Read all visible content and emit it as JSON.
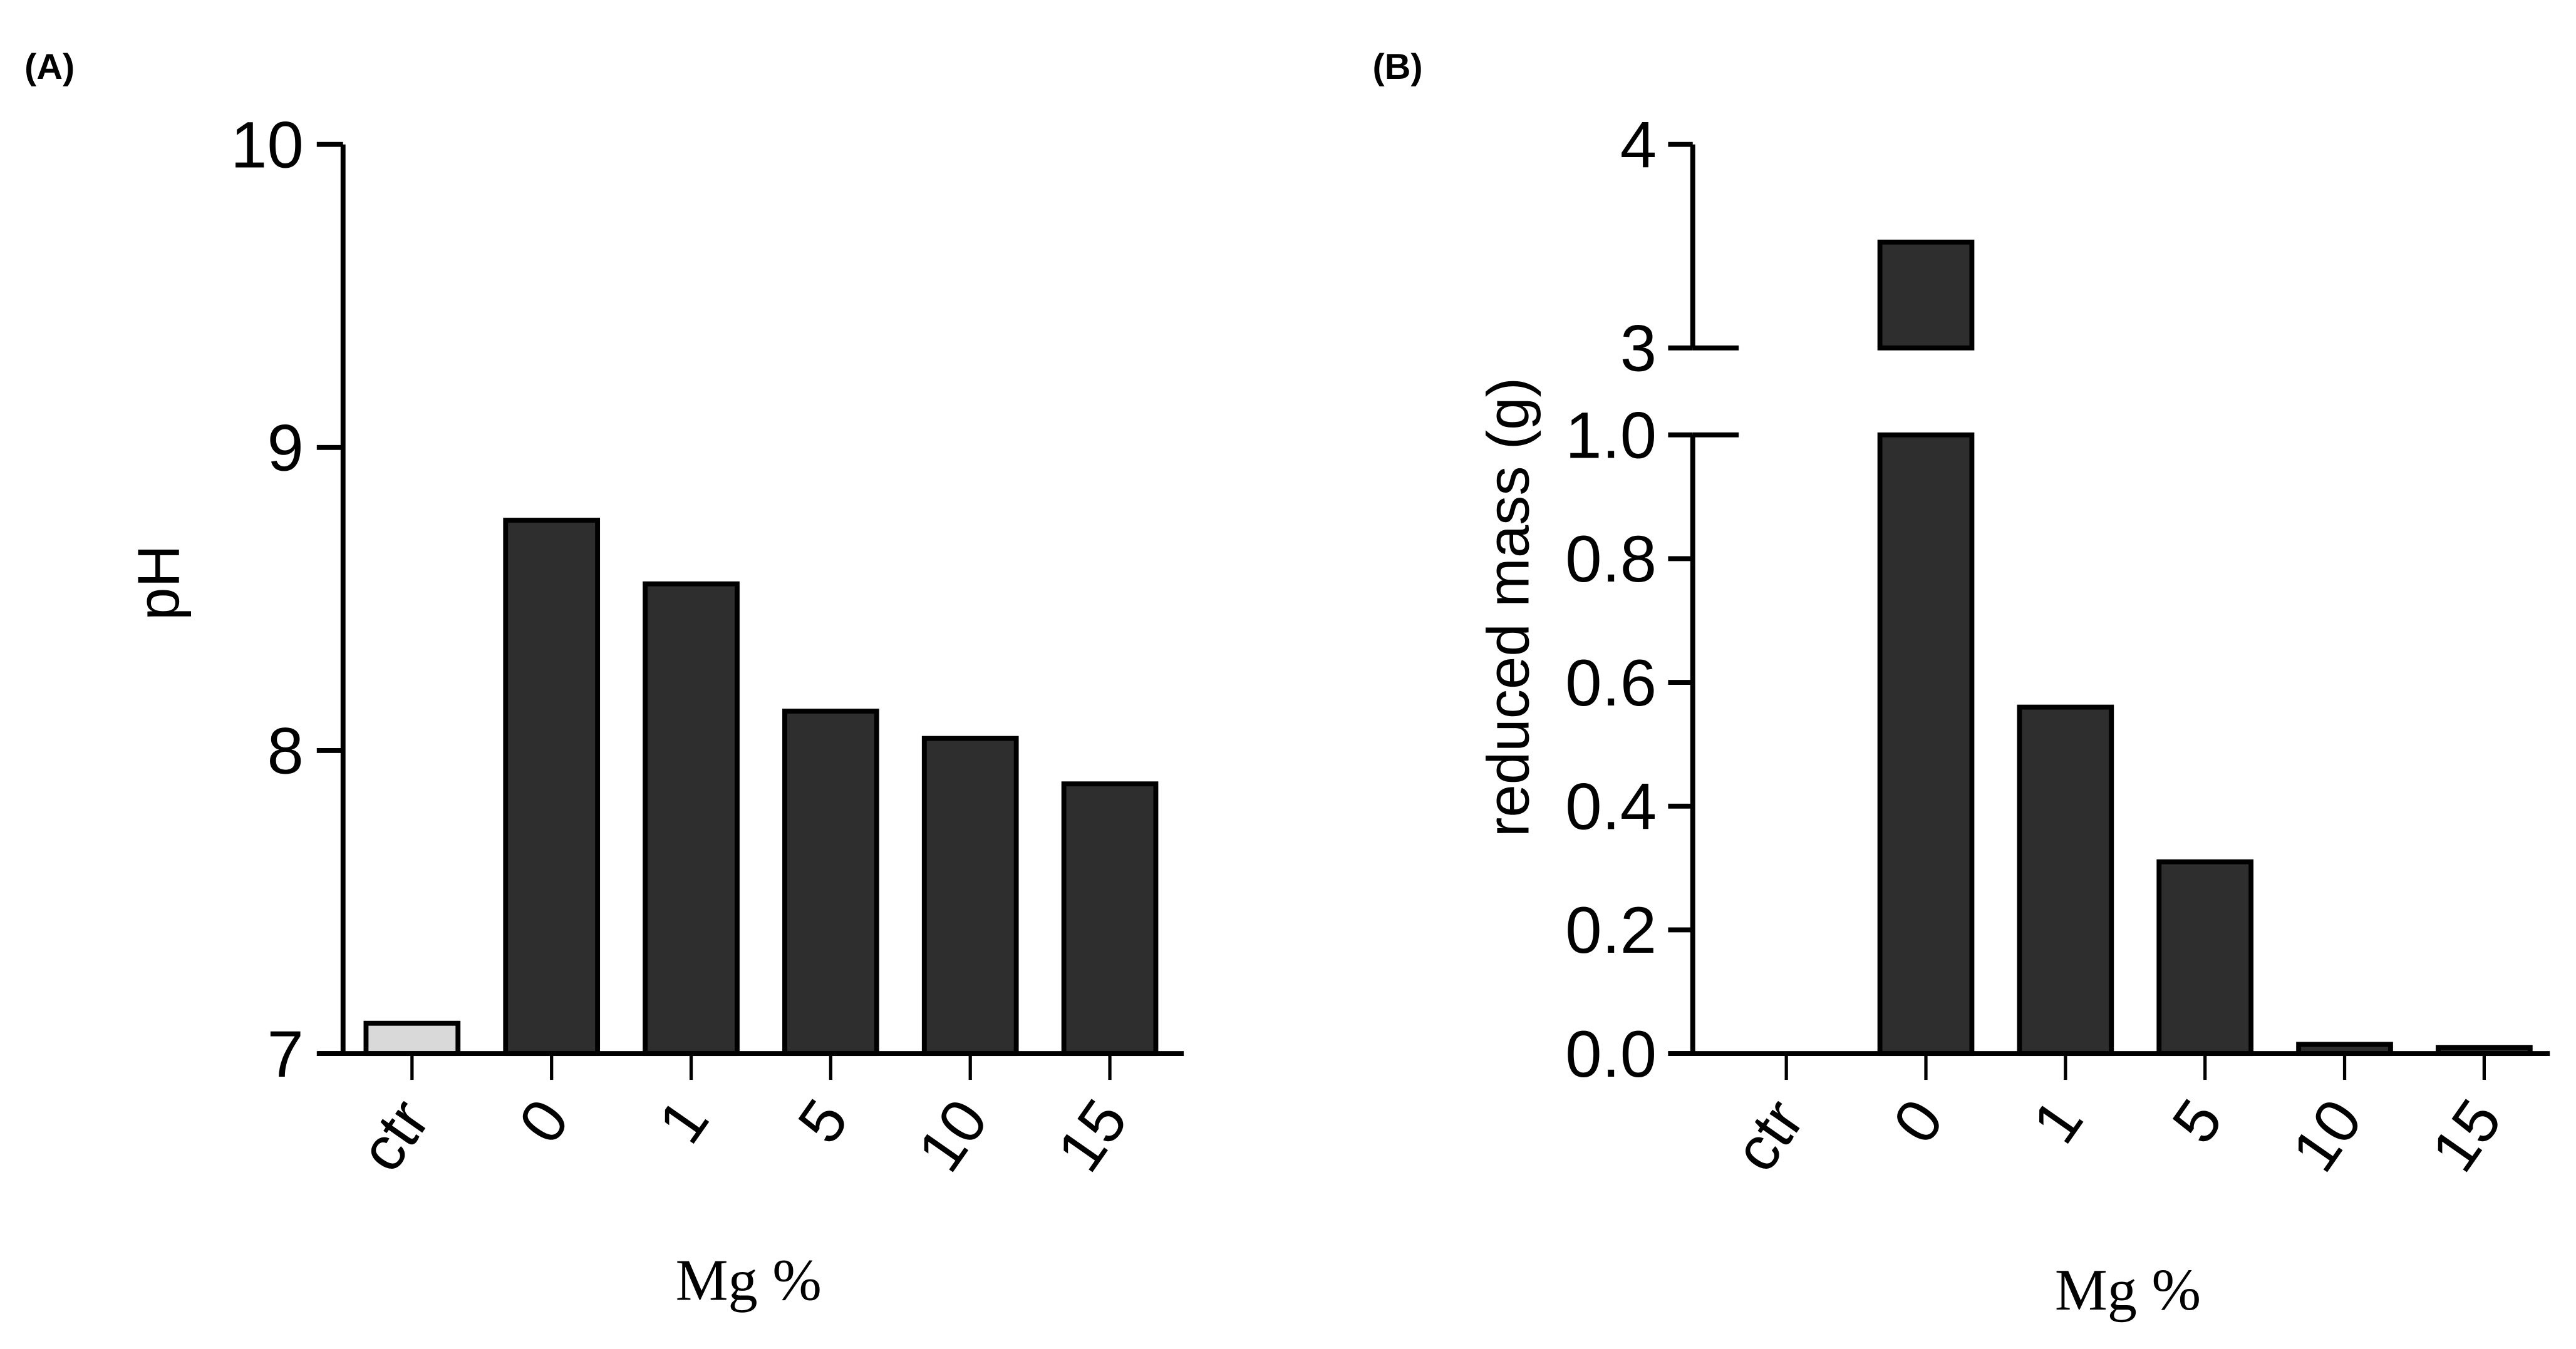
{
  "figure": {
    "panels": [
      {
        "label": "(A)"
      },
      {
        "label": "(B)"
      }
    ]
  },
  "chart_data": [
    {
      "type": "bar",
      "panel": "(A)",
      "title": "",
      "xlabel": "Mg %",
      "ylabel": "pH",
      "categories": [
        "ctr",
        "0",
        "1",
        "5",
        "10",
        "15"
      ],
      "values": [
        7.1,
        8.76,
        8.55,
        8.13,
        8.04,
        7.89
      ],
      "bar_colors": [
        "#d9d9d9",
        "#2e2e2e",
        "#2e2e2e",
        "#2e2e2e",
        "#2e2e2e",
        "#2e2e2e"
      ],
      "ylim": [
        7,
        10
      ],
      "yticks": [
        "7",
        "8",
        "9",
        "10"
      ],
      "grid": false,
      "legend": null
    },
    {
      "type": "bar",
      "panel": "(B)",
      "title": "",
      "xlabel": "Mg %",
      "ylabel": "reduced mass (g)",
      "categories": [
        "ctr",
        "0",
        "1",
        "5",
        "10",
        "15"
      ],
      "values": [
        0,
        3.52,
        0.56,
        0.31,
        0.015,
        0.01
      ],
      "bar_colors": [
        "#2e2e2e",
        "#2e2e2e",
        "#2e2e2e",
        "#2e2e2e",
        "#2e2e2e",
        "#2e2e2e"
      ],
      "ylim": [
        0,
        4
      ],
      "axis_break": {
        "lower": [
          0,
          1.0
        ],
        "upper": [
          3,
          4
        ]
      },
      "yticks_lower": [
        "0.0",
        "0.2",
        "0.4",
        "0.6",
        "0.8",
        "1.0"
      ],
      "yticks_upper": [
        "3",
        "4"
      ],
      "grid": false,
      "legend": null
    }
  ]
}
